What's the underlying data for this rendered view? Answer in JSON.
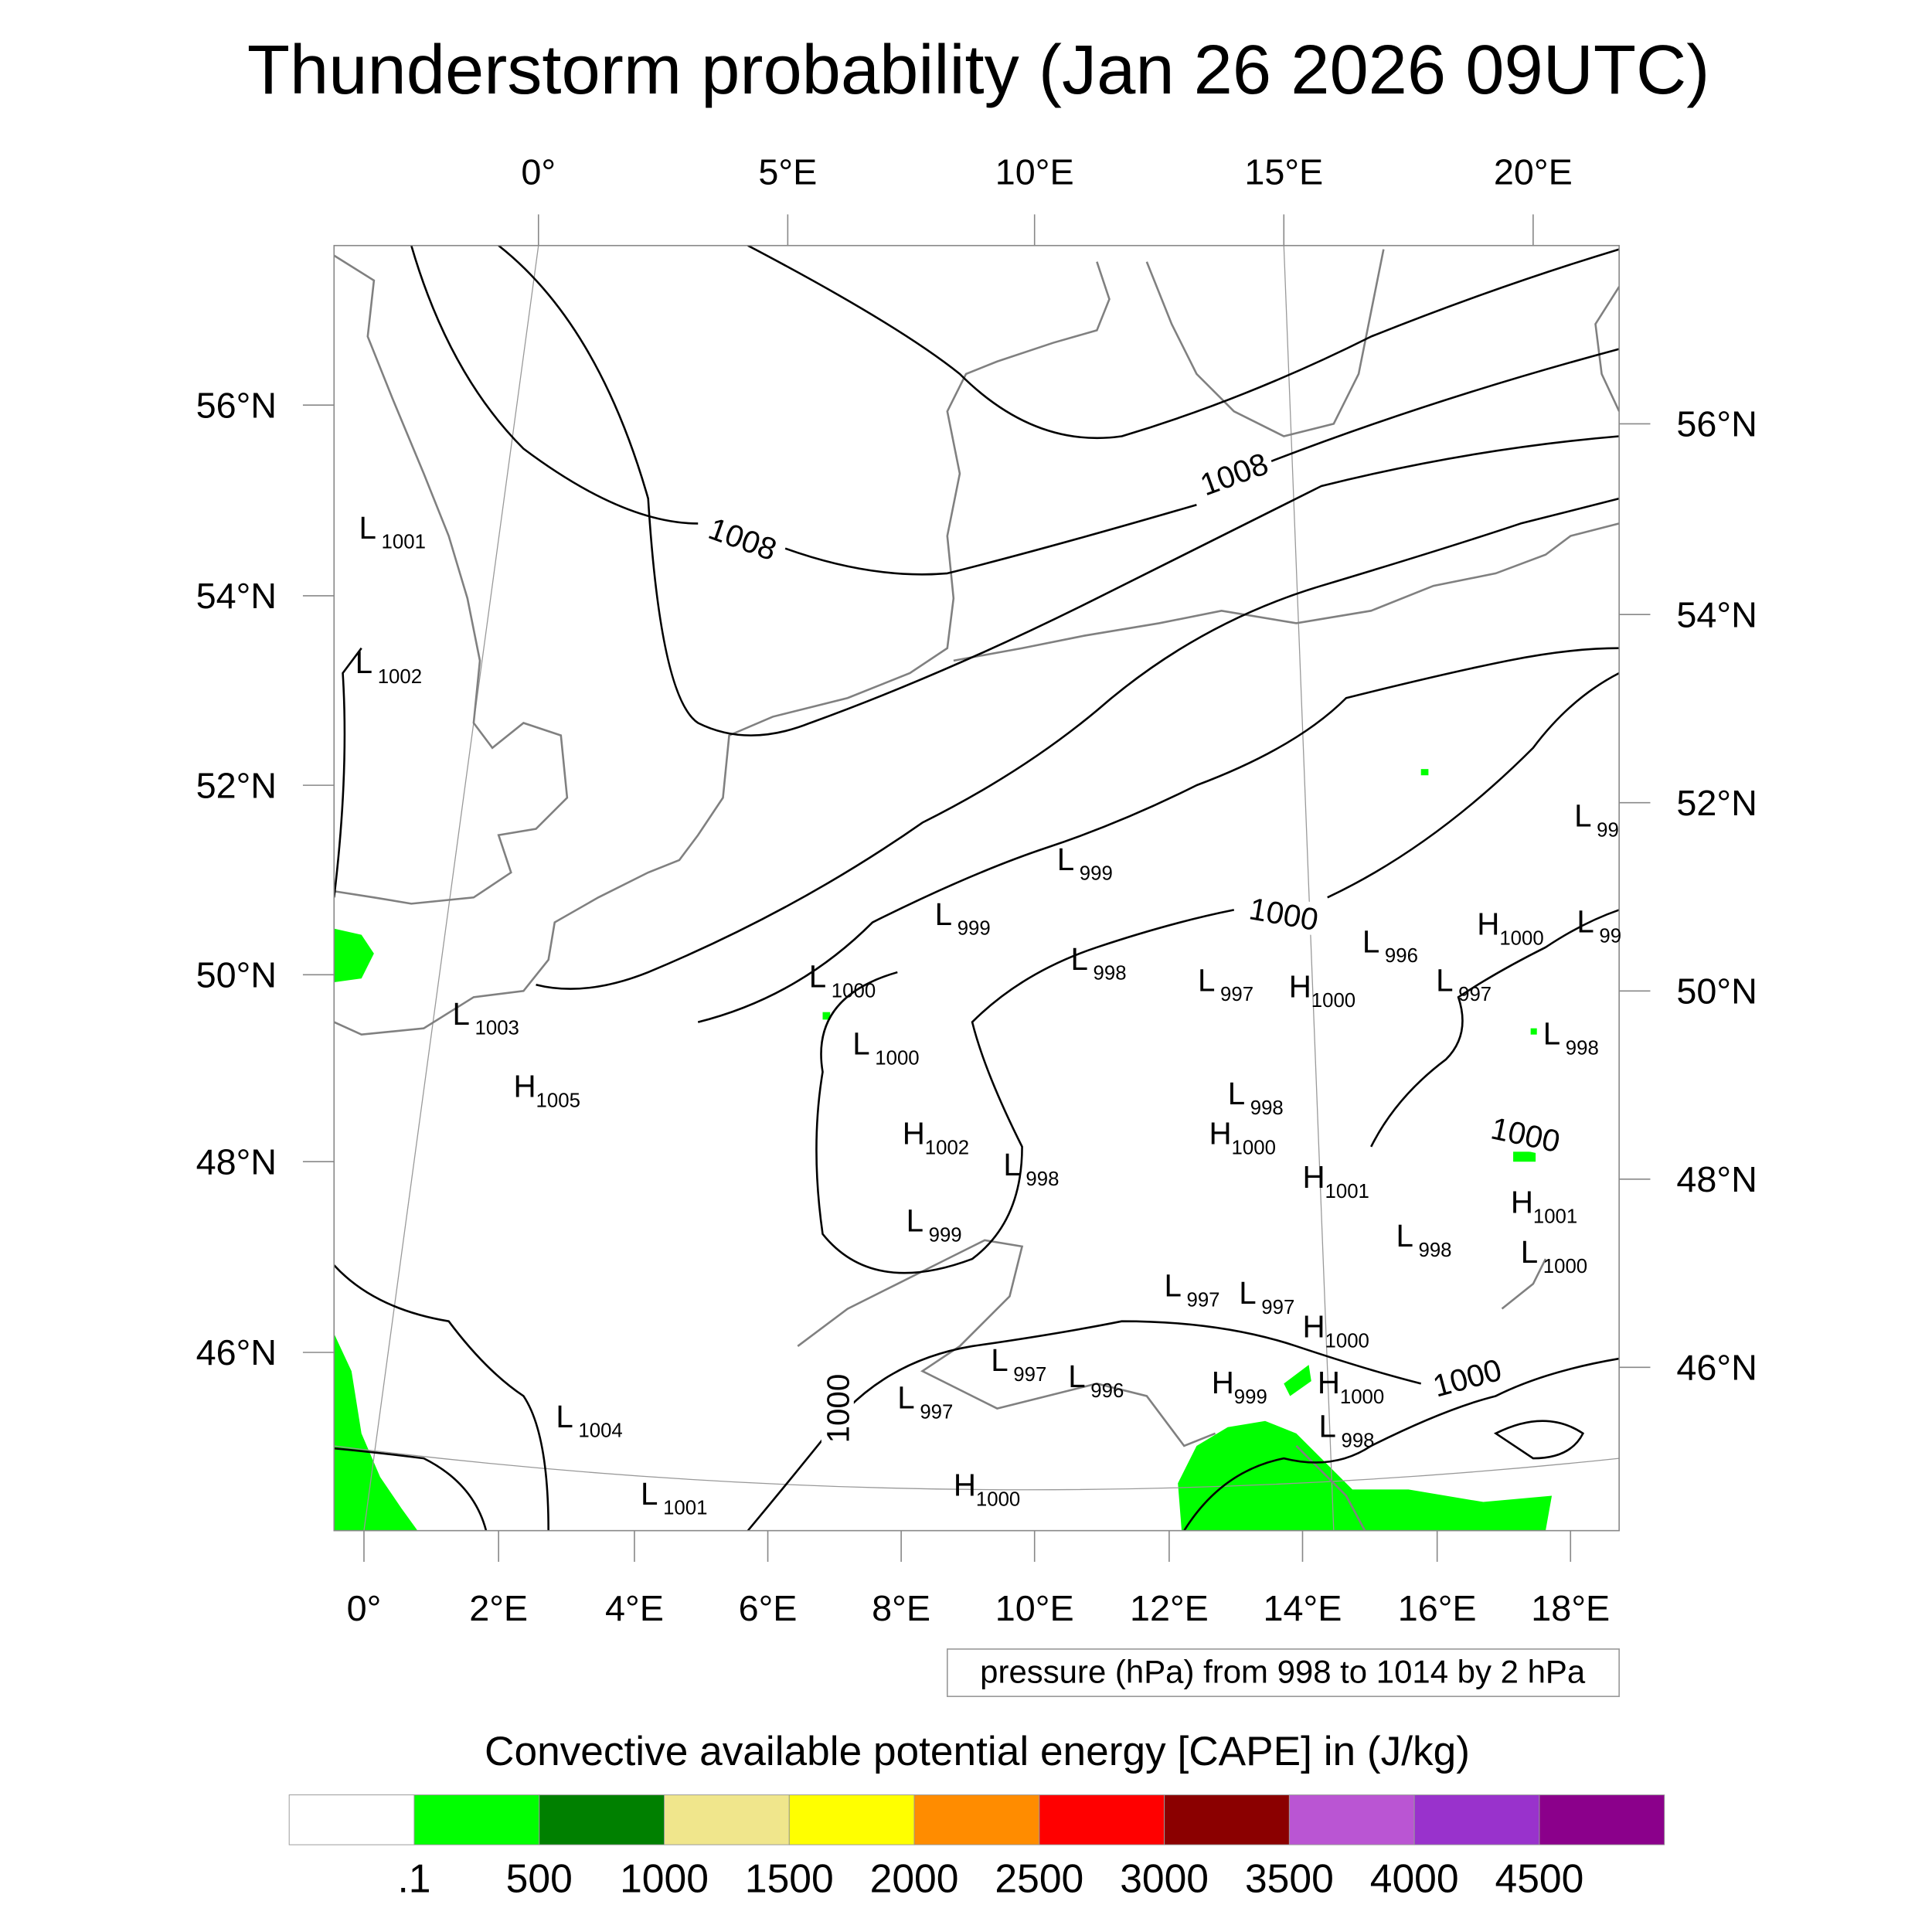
{
  "chart_data": {
    "type": "contour",
    "title": "Thunderstorm probability (Jan 26 2026 09UTC)",
    "top_lon_ticks": [
      "0°",
      "5°E",
      "10°E",
      "15°E",
      "20°E"
    ],
    "bottom_lon_ticks": [
      "0°",
      "2°E",
      "4°E",
      "6°E",
      "8°E",
      "10°E",
      "12°E",
      "14°E",
      "16°E",
      "18°E"
    ],
    "left_lat_ticks": [
      "56°N",
      "54°N",
      "52°N",
      "50°N",
      "48°N",
      "46°N"
    ],
    "right_lat_ticks": [
      "56°N",
      "54°N",
      "52°N",
      "50°N",
      "48°N",
      "46°N"
    ],
    "contour_info": "pressure (hPa) from 998 to 1014 by 2 hPa",
    "contour_labels": [
      "1008",
      "1008",
      "1000",
      "1000",
      "1000",
      "1000"
    ],
    "pressure_centers": [
      {
        "type": "L",
        "value": "1001"
      },
      {
        "type": "L",
        "value": "1002"
      },
      {
        "type": "L",
        "value": "1003"
      },
      {
        "type": "H",
        "value": "1005"
      },
      {
        "type": "L",
        "value": "1004"
      },
      {
        "type": "L",
        "value": "1001"
      },
      {
        "type": "H",
        "value": "1000"
      },
      {
        "type": "L",
        "value": "997"
      },
      {
        "type": "L",
        "value": "997"
      },
      {
        "type": "L",
        "value": "996"
      },
      {
        "type": "H",
        "value": "999"
      },
      {
        "type": "H",
        "value": "1000"
      },
      {
        "type": "L",
        "value": "998"
      },
      {
        "type": "H",
        "value": "1000"
      },
      {
        "type": "L",
        "value": "997"
      },
      {
        "type": "L",
        "value": "997"
      },
      {
        "type": "L",
        "value": "998"
      },
      {
        "type": "H",
        "value": "1001"
      },
      {
        "type": "L",
        "value": "1000"
      },
      {
        "type": "H",
        "value": "1001"
      },
      {
        "type": "H",
        "value": "1000"
      },
      {
        "type": "L",
        "value": "998"
      },
      {
        "type": "L",
        "value": "998"
      },
      {
        "type": "H",
        "value": "1002"
      },
      {
        "type": "L",
        "value": "999"
      },
      {
        "type": "L",
        "value": "1000"
      },
      {
        "type": "L",
        "value": "1000"
      },
      {
        "type": "L",
        "value": "999"
      },
      {
        "type": "L",
        "value": "999"
      },
      {
        "type": "L",
        "value": "998"
      },
      {
        "type": "L",
        "value": "997"
      },
      {
        "type": "H",
        "value": "1000"
      },
      {
        "type": "L",
        "value": "996"
      },
      {
        "type": "L",
        "value": "997"
      },
      {
        "type": "H",
        "value": "1000"
      },
      {
        "type": "L",
        "value": "99"
      },
      {
        "type": "L",
        "value": "99"
      },
      {
        "type": "L",
        "value": "998"
      }
    ],
    "colorbar": {
      "title": "Convective available potential energy [CAPE] in (J/kg)",
      "labels": [
        ".1",
        "500",
        "1000",
        "1500",
        "2000",
        "2500",
        "3000",
        "3500",
        "4000",
        "4500"
      ],
      "colors": [
        "#ffffff",
        "#00ff00",
        "#008000",
        "#f0e68c",
        "#ffff00",
        "#ff8c00",
        "#ff0000",
        "#8b0000",
        "#ba55d3",
        "#9932cc",
        "#8b008b"
      ]
    },
    "fill_color_present": "#00ff00"
  }
}
